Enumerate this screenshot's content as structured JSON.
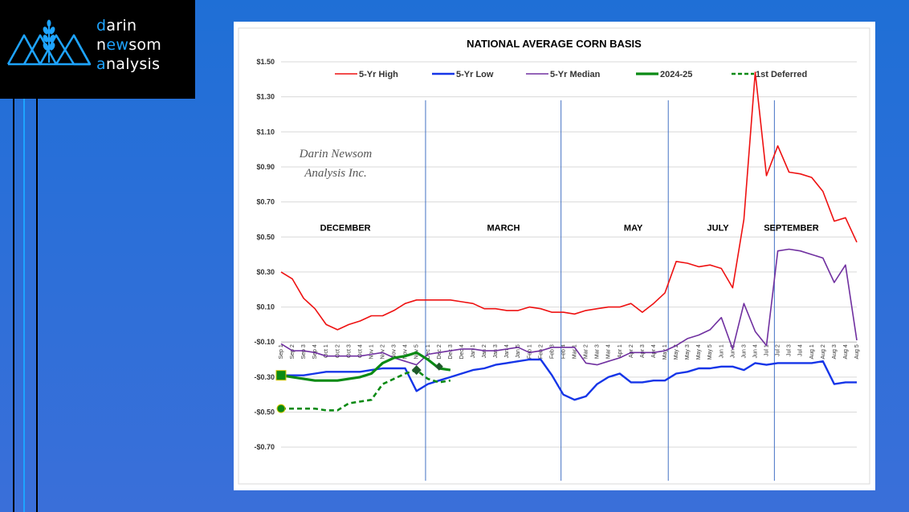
{
  "logo": {
    "line1_hl": "d",
    "line1_rest": "arin",
    "line2_a": "n",
    "line2_hl": "ew",
    "line2_b": "som",
    "line3_hl": "a",
    "line3_rest": "nalysis"
  },
  "colors": {
    "high": "#ee1111",
    "low": "#1535e8",
    "median": "#7030a0",
    "current": "#0a8a14",
    "deferred": "#0a8a14",
    "brand_blue": "#1ea4ff",
    "background": "#2a6fd8"
  },
  "chart_data": {
    "type": "line",
    "title": "NATIONAL AVERAGE CORN BASIS",
    "watermark": [
      "Darin Newsom",
      "Analysis Inc."
    ],
    "ylim": [
      -0.8,
      1.5
    ],
    "yticks": [
      1.5,
      1.3,
      1.1,
      0.9,
      0.7,
      0.5,
      0.3,
      0.1,
      -0.1,
      -0.3,
      -0.5,
      -0.7
    ],
    "ytick_labels": [
      "$1.50",
      "$1.30",
      "$1.10",
      "$0.90",
      "$0.70",
      "$0.50",
      "$0.30",
      "$0.10",
      "-$0.10",
      "-$0.30",
      "-$0.50",
      "-$0.70"
    ],
    "grid": "horizontal",
    "legend_position": "top",
    "x_labels": [
      "Sep 1",
      "Sep 2",
      "Sep 3",
      "Sep 4",
      "Oct 1",
      "Oct 2",
      "Oct 3",
      "Oct 4",
      "Nov 1",
      "Nov 2",
      "Nov 3",
      "Nov 4",
      "Nov 5",
      "Dec 1",
      "Dec 2",
      "Dec 3",
      "Dec 4",
      "Jan 1",
      "Jan 2",
      "Jan 3",
      "Jan 4",
      "Jan 5",
      "Feb 1",
      "Feb 2",
      "Feb 3",
      "Feb 4",
      "Mar 1",
      "Mar 2",
      "Mar 3",
      "Mar 4",
      "Apr 1",
      "Apr 2",
      "Apr 3",
      "Apr 4",
      "May 1",
      "May 2",
      "May 3",
      "May 4",
      "May 5",
      "Jun 1",
      "Jun 2",
      "Jun 3",
      "Jun 4",
      "Jul 1",
      "Jul 2",
      "Jul 3",
      "Jul 4",
      "Aug 1",
      "Aug 2",
      "Aug 3",
      "Aug 4",
      "Aug 5"
    ],
    "month_labels": [
      {
        "text": "DECEMBER",
        "at": 5.7
      },
      {
        "text": "MARCH",
        "at": 19.7
      },
      {
        "text": "MAY",
        "at": 31.2
      },
      {
        "text": "JULY",
        "at": 38.7
      },
      {
        "text": "SEPTEMBER",
        "at": 45.2
      }
    ],
    "contract_dividers": [
      12.8,
      24.8,
      34.3,
      43.7
    ],
    "series": [
      {
        "name": "5-Yr High",
        "key": "high",
        "values": [
          0.3,
          0.26,
          0.15,
          0.09,
          0.0,
          -0.03,
          0.0,
          0.02,
          0.05,
          0.05,
          0.08,
          0.12,
          0.14,
          0.14,
          0.14,
          0.14,
          0.13,
          0.12,
          0.09,
          0.09,
          0.08,
          0.08,
          0.1,
          0.09,
          0.07,
          0.07,
          0.06,
          0.08,
          0.09,
          0.1,
          0.1,
          0.12,
          0.07,
          0.12,
          0.18,
          0.36,
          0.35,
          0.33,
          0.34,
          0.32,
          0.21,
          0.6,
          1.44,
          0.85,
          1.02,
          0.87,
          0.86,
          0.84,
          0.76,
          0.59,
          0.61,
          0.47
        ]
      },
      {
        "name": "5-Yr Low",
        "key": "low",
        "values": [
          -0.29,
          -0.29,
          -0.29,
          -0.28,
          -0.27,
          -0.27,
          -0.27,
          -0.27,
          -0.26,
          -0.25,
          -0.25,
          -0.25,
          -0.38,
          -0.34,
          -0.32,
          -0.3,
          -0.28,
          -0.26,
          -0.25,
          -0.23,
          -0.22,
          -0.21,
          -0.2,
          -0.2,
          -0.29,
          -0.4,
          -0.43,
          -0.41,
          -0.34,
          -0.3,
          -0.28,
          -0.33,
          -0.33,
          -0.32,
          -0.32,
          -0.28,
          -0.27,
          -0.25,
          -0.25,
          -0.24,
          -0.24,
          -0.26,
          -0.22,
          -0.23,
          -0.22,
          -0.22,
          -0.22,
          -0.22,
          -0.21,
          -0.34,
          -0.33,
          -0.33
        ]
      },
      {
        "name": "5-Yr Median",
        "key": "median",
        "values": [
          -0.11,
          -0.15,
          -0.15,
          -0.16,
          -0.18,
          -0.18,
          -0.18,
          -0.18,
          -0.17,
          -0.16,
          -0.19,
          -0.21,
          -0.23,
          -0.17,
          -0.16,
          -0.15,
          -0.14,
          -0.14,
          -0.15,
          -0.15,
          -0.14,
          -0.13,
          -0.16,
          -0.15,
          -0.13,
          -0.13,
          -0.13,
          -0.22,
          -0.23,
          -0.21,
          -0.19,
          -0.16,
          -0.16,
          -0.16,
          -0.15,
          -0.12,
          -0.08,
          -0.06,
          -0.03,
          0.04,
          -0.14,
          0.12,
          -0.04,
          -0.12,
          0.42,
          0.43,
          0.42,
          0.4,
          0.38,
          0.24,
          0.34,
          -0.09
        ]
      },
      {
        "name": "2024-25",
        "key": "current",
        "values": [
          -0.29,
          -0.3,
          -0.31,
          -0.32,
          -0.32,
          -0.32,
          -0.31,
          -0.3,
          -0.28,
          -0.22,
          -0.19,
          -0.18,
          -0.16,
          -0.2,
          -0.25,
          -0.26
        ]
      },
      {
        "name": "1st Deferred",
        "key": "deferred",
        "values": [
          -0.48,
          -0.48,
          -0.48,
          -0.48,
          -0.49,
          -0.49,
          -0.45,
          -0.44,
          -0.43,
          -0.34,
          -0.31,
          -0.28,
          -0.26,
          -0.31,
          -0.33,
          -0.32
        ]
      }
    ]
  }
}
